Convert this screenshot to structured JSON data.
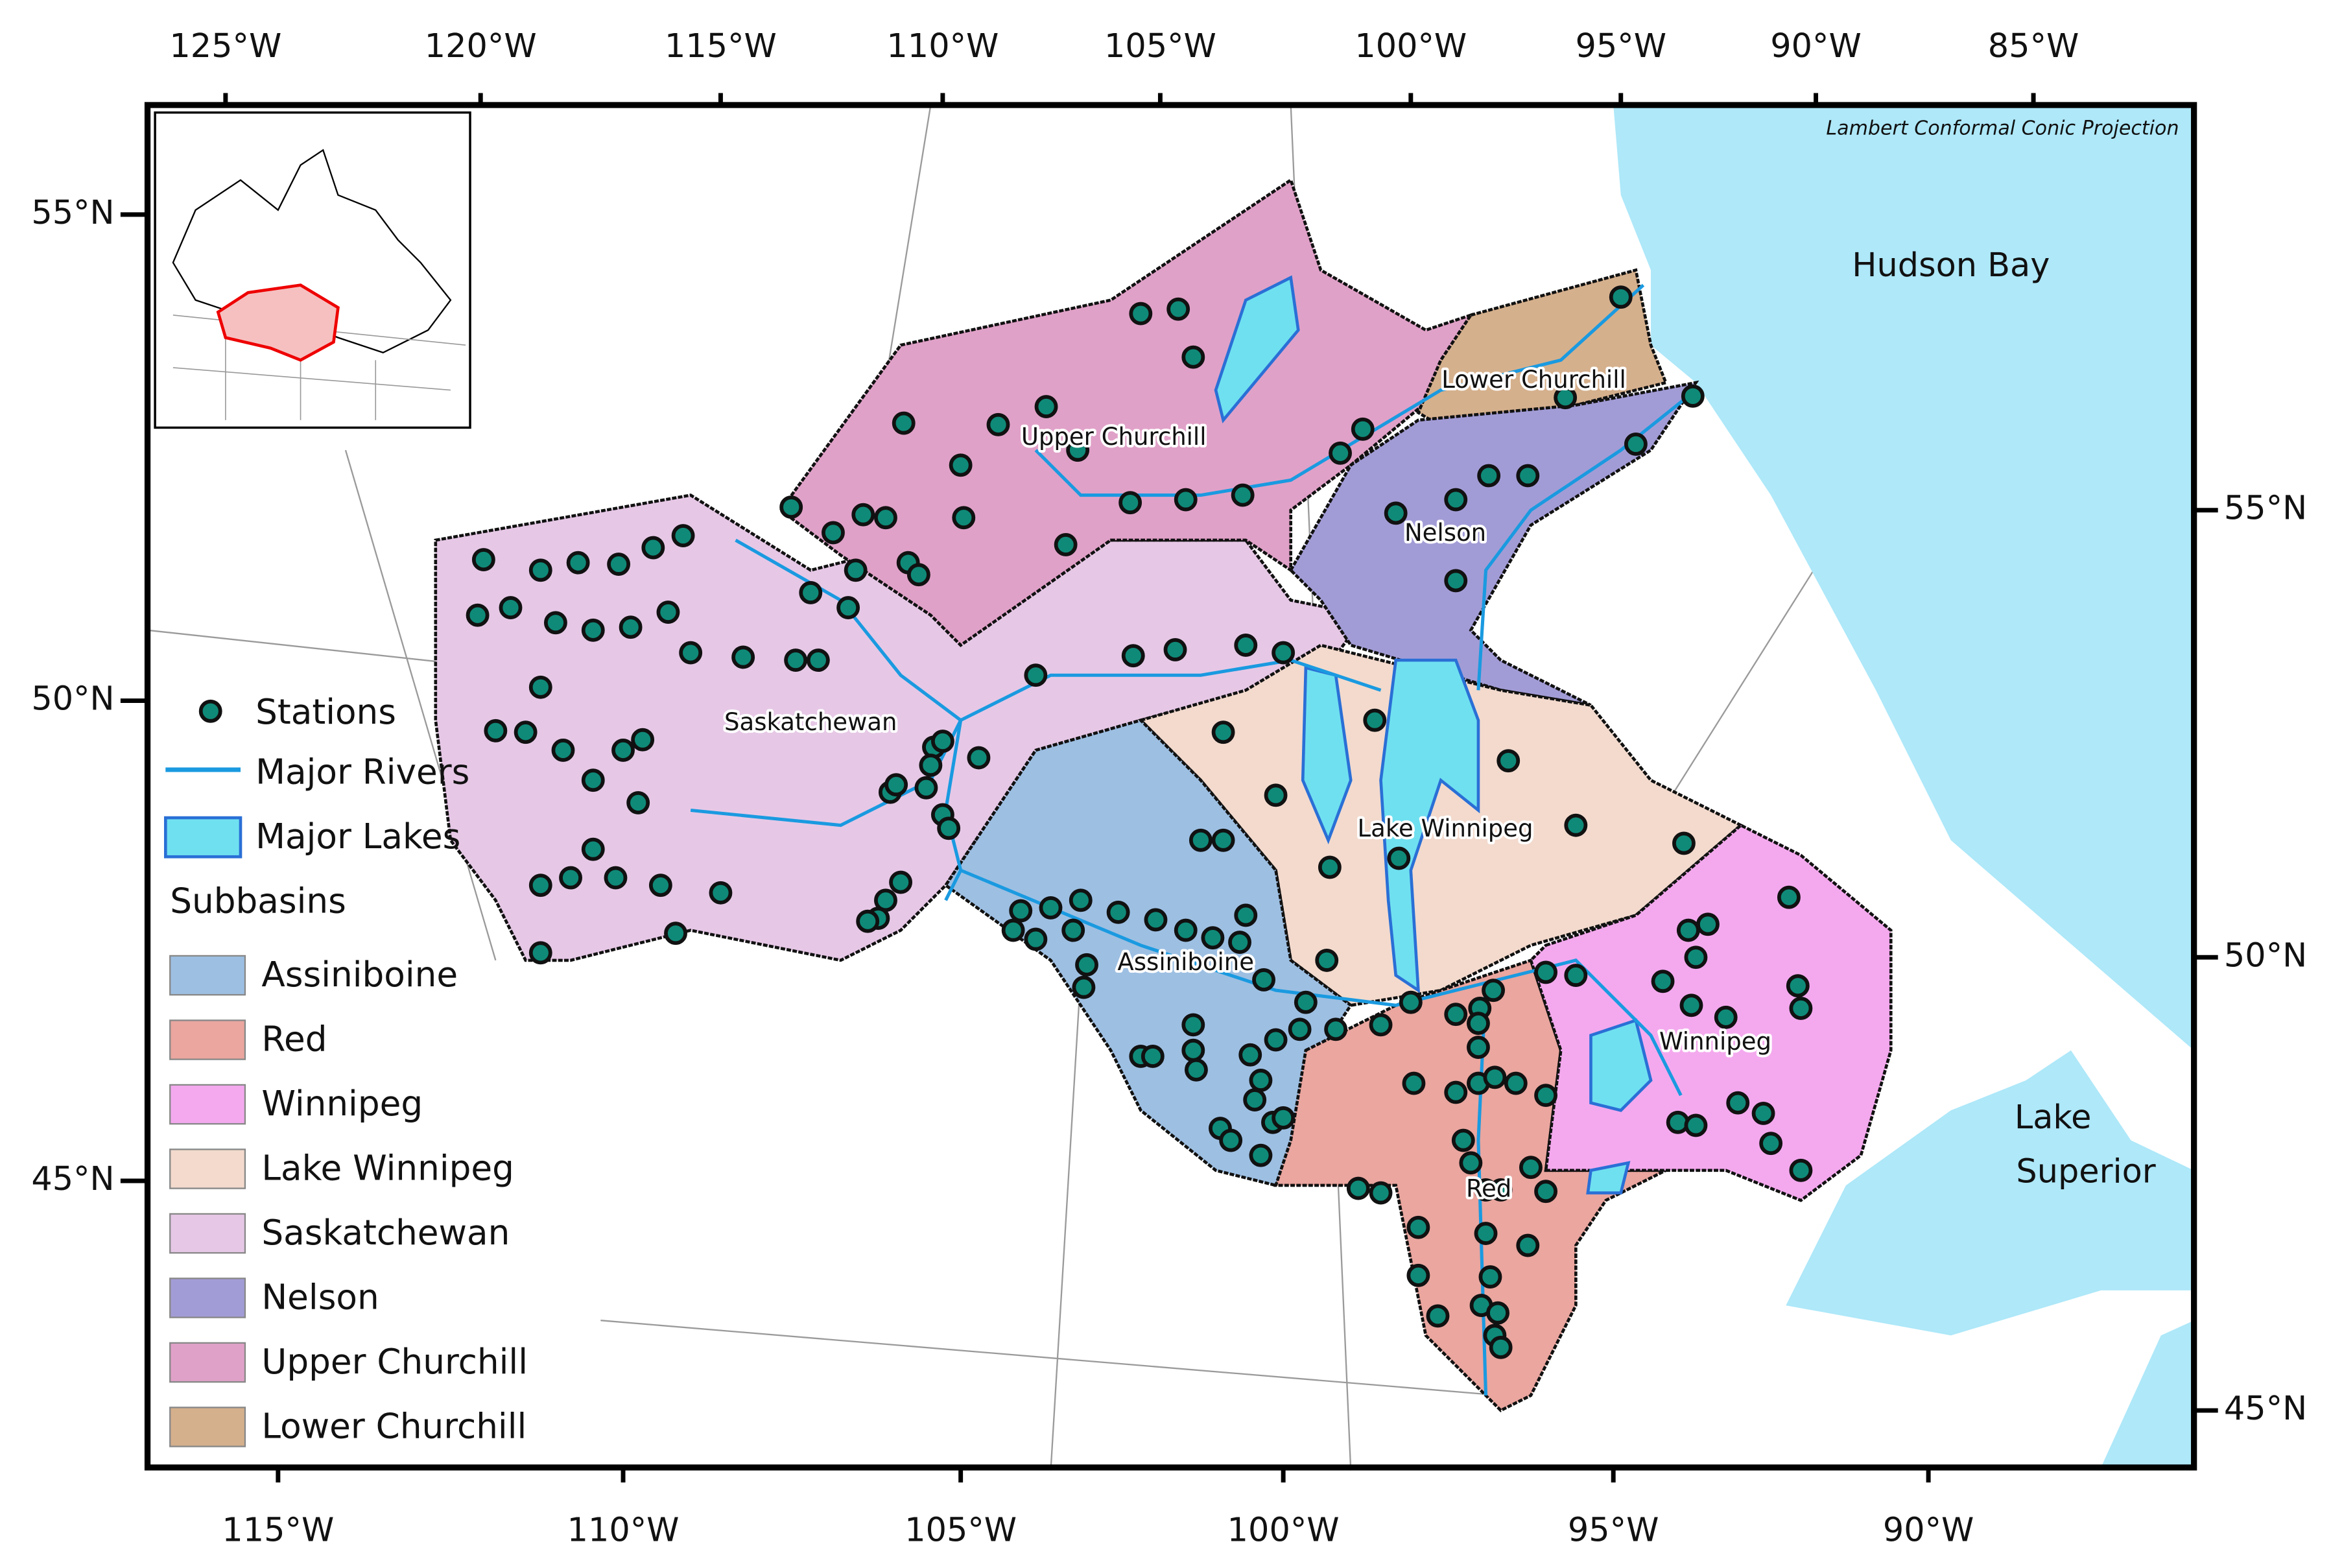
{
  "projection_note": "Lambert Conformal Conic Projection",
  "graticule": {
    "top": [
      "125°W",
      "120°W",
      "115°W",
      "110°W",
      "105°W",
      "100°W",
      "95°W",
      "90°W",
      "85°W"
    ],
    "bottom": [
      "115°W",
      "110°W",
      "105°W",
      "100°W",
      "95°W",
      "90°W"
    ],
    "left": [
      "55°N",
      "50°N",
      "45°N"
    ],
    "right": [
      "55°N",
      "50°N",
      "45°N"
    ]
  },
  "water_labels": {
    "hudson_bay": "Hudson Bay",
    "lake_superior": [
      "Lake",
      "Superior"
    ]
  },
  "basin_labels": [
    "Upper Churchill",
    "Lower Churchill",
    "Nelson",
    "Saskatchewan",
    "Lake Winnipeg",
    "Assiniboine",
    "Winnipeg",
    "Red"
  ],
  "legend": {
    "items": [
      "Stations",
      "Major Rivers",
      "Major Lakes"
    ],
    "subbasins_title": "Subbasins",
    "subbasins": [
      {
        "name": "Assiniboine",
        "color": "#9dbfe2"
      },
      {
        "name": "Red",
        "color": "#eaa69f"
      },
      {
        "name": "Winnipeg",
        "color": "#f4a9ee"
      },
      {
        "name": "Lake Winnipeg",
        "color": "#f3dacd"
      },
      {
        "name": "Saskatchewan",
        "color": "#e6c8e6"
      },
      {
        "name": "Nelson",
        "color": "#a29cd6"
      },
      {
        "name": "Upper Churchill",
        "color": "#e0a1c8"
      },
      {
        "name": "Lower Churchill",
        "color": "#d5b08d"
      }
    ]
  }
}
